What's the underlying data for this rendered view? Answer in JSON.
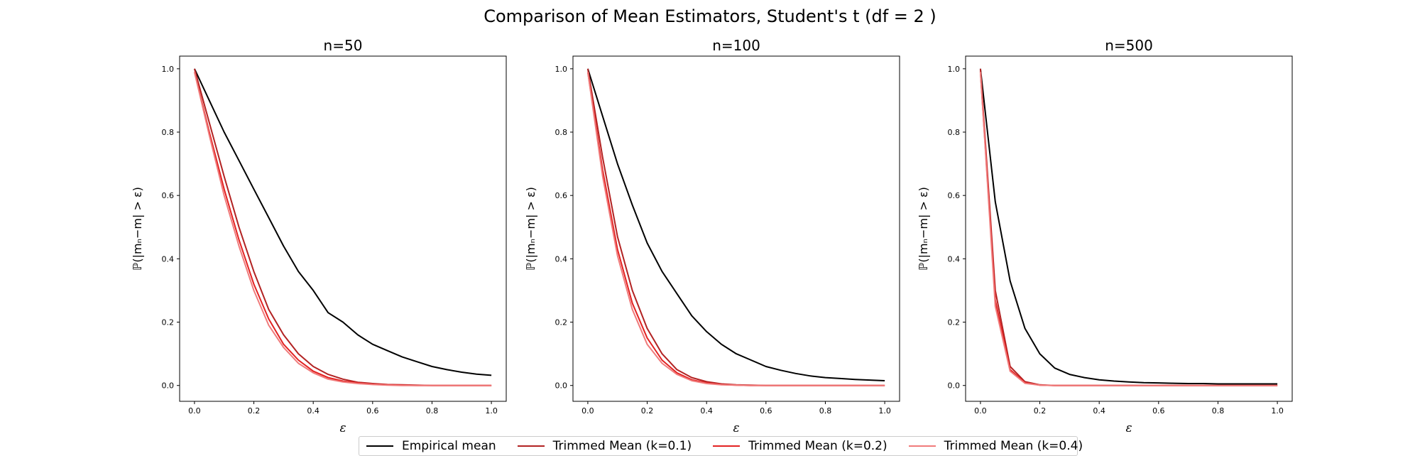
{
  "chart_data": {
    "type": "line",
    "suptitle": "Comparison of Mean Estimators, Student's t (df = 2 )",
    "xlabel": "ε",
    "ylabel": "ℙ(|mₙ−m| > ε)",
    "xlim": [
      -0.05,
      1.05
    ],
    "ylim": [
      -0.05,
      1.04
    ],
    "xticks": [
      0.0,
      0.2,
      0.4,
      0.6,
      0.8,
      1.0
    ],
    "xtick_labels": [
      "0.0",
      "0.2",
      "0.4",
      "0.6",
      "0.8",
      "1.0"
    ],
    "yticks": [
      0.0,
      0.2,
      0.4,
      0.6,
      0.8,
      1.0
    ],
    "ytick_labels": [
      "0.0",
      "0.2",
      "0.4",
      "0.6",
      "0.8",
      "1.0"
    ],
    "x": [
      0.0,
      0.05,
      0.1,
      0.15,
      0.2,
      0.25,
      0.3,
      0.35,
      0.4,
      0.45,
      0.5,
      0.55,
      0.6,
      0.65,
      0.7,
      0.75,
      0.8,
      0.85,
      0.9,
      0.95,
      1.0
    ],
    "legend": [
      {
        "label": "Empirical mean",
        "color": "#000000"
      },
      {
        "label": "Trimmed Mean (k=0.1)",
        "color": "#b22222"
      },
      {
        "label": "Trimmed Mean (k=0.2)",
        "color": "#e32222"
      },
      {
        "label": "Trimmed Mean (k=0.4)",
        "color": "#f07b7b"
      }
    ],
    "panels": [
      {
        "title": "n=50",
        "series": [
          {
            "name": "Empirical mean",
            "values": [
              1.0,
              0.9,
              0.8,
              0.71,
              0.62,
              0.53,
              0.44,
              0.36,
              0.3,
              0.23,
              0.2,
              0.16,
              0.13,
              0.11,
              0.09,
              0.075,
              0.06,
              0.05,
              0.042,
              0.036,
              0.032
            ]
          },
          {
            "name": "Trimmed Mean (k=0.1)",
            "values": [
              1.0,
              0.83,
              0.66,
              0.5,
              0.36,
              0.24,
              0.16,
              0.1,
              0.06,
              0.035,
              0.02,
              0.01,
              0.006,
              0.003,
              0.002,
              0.001,
              0.0,
              0.0,
              0.0,
              0.0,
              0.0
            ]
          },
          {
            "name": "Trimmed Mean (k=0.2)",
            "values": [
              0.99,
              0.8,
              0.62,
              0.46,
              0.32,
              0.21,
              0.13,
              0.08,
              0.045,
              0.025,
              0.014,
              0.008,
              0.004,
              0.002,
              0.001,
              0.0,
              0.0,
              0.0,
              0.0,
              0.0,
              0.0
            ]
          },
          {
            "name": "Trimmed Mean (k=0.4)",
            "values": [
              0.99,
              0.79,
              0.6,
              0.44,
              0.3,
              0.19,
              0.12,
              0.07,
              0.04,
              0.02,
              0.011,
              0.006,
              0.003,
              0.001,
              0.0,
              0.0,
              0.0,
              0.0,
              0.0,
              0.0,
              0.0
            ]
          }
        ]
      },
      {
        "title": "n=100",
        "series": [
          {
            "name": "Empirical mean",
            "values": [
              1.0,
              0.85,
              0.7,
              0.57,
              0.45,
              0.36,
              0.29,
              0.22,
              0.17,
              0.13,
              0.1,
              0.08,
              0.06,
              0.048,
              0.038,
              0.03,
              0.025,
              0.022,
              0.019,
              0.017,
              0.015
            ]
          },
          {
            "name": "Trimmed Mean (k=0.1)",
            "values": [
              1.0,
              0.72,
              0.47,
              0.3,
              0.18,
              0.1,
              0.05,
              0.025,
              0.012,
              0.005,
              0.002,
              0.001,
              0.0,
              0.0,
              0.0,
              0.0,
              0.0,
              0.0,
              0.0,
              0.0,
              0.0
            ]
          },
          {
            "name": "Trimmed Mean (k=0.2)",
            "values": [
              0.99,
              0.68,
              0.43,
              0.26,
              0.15,
              0.08,
              0.04,
              0.018,
              0.008,
              0.003,
              0.001,
              0.0,
              0.0,
              0.0,
              0.0,
              0.0,
              0.0,
              0.0,
              0.0,
              0.0,
              0.0
            ]
          },
          {
            "name": "Trimmed Mean (k=0.4)",
            "values": [
              0.99,
              0.66,
              0.41,
              0.24,
              0.13,
              0.07,
              0.035,
              0.015,
              0.006,
              0.002,
              0.001,
              0.0,
              0.0,
              0.0,
              0.0,
              0.0,
              0.0,
              0.0,
              0.0,
              0.0,
              0.0
            ]
          }
        ]
      },
      {
        "title": "n=500",
        "series": [
          {
            "name": "Empirical mean",
            "values": [
              1.0,
              0.58,
              0.33,
              0.18,
              0.1,
              0.055,
              0.035,
              0.025,
              0.018,
              0.014,
              0.011,
              0.009,
              0.008,
              0.007,
              0.006,
              0.006,
              0.005,
              0.005,
              0.005,
              0.005,
              0.005
            ]
          },
          {
            "name": "Trimmed Mean (k=0.1)",
            "values": [
              1.0,
              0.3,
              0.06,
              0.012,
              0.002,
              0.0,
              0.0,
              0.0,
              0.0,
              0.0,
              0.0,
              0.0,
              0.0,
              0.0,
              0.0,
              0.0,
              0.0,
              0.0,
              0.0,
              0.0,
              0.0
            ]
          },
          {
            "name": "Trimmed Mean (k=0.2)",
            "values": [
              0.99,
              0.27,
              0.05,
              0.009,
              0.001,
              0.0,
              0.0,
              0.0,
              0.0,
              0.0,
              0.0,
              0.0,
              0.0,
              0.0,
              0.0,
              0.0,
              0.0,
              0.0,
              0.0,
              0.0,
              0.0
            ]
          },
          {
            "name": "Trimmed Mean (k=0.4)",
            "values": [
              0.99,
              0.25,
              0.045,
              0.007,
              0.001,
              0.0,
              0.0,
              0.0,
              0.0,
              0.0,
              0.0,
              0.0,
              0.0,
              0.0,
              0.0,
              0.0,
              0.0,
              0.0,
              0.0,
              0.0,
              0.0
            ]
          }
        ]
      }
    ]
  }
}
